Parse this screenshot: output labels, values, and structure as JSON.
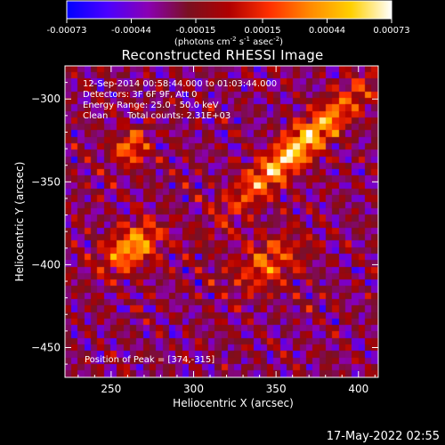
{
  "colorbar": {
    "tick_labels": [
      "-0.00073",
      "-0.00044",
      "-0.00015",
      "0.00015",
      "0.00044",
      "0.00073"
    ],
    "tick_values": [
      -0.00073,
      -0.00044,
      -0.00015,
      0.00015,
      0.00044,
      0.00073
    ],
    "range": [
      -0.00073,
      0.00073
    ],
    "units_pre": "(photons cm",
    "units_exp1": "-2",
    "units_mid": " s",
    "units_exp2": "-1",
    "units_post": " asec",
    "units_exp3": "-2",
    "units_end": ")",
    "colors": [
      "#0000ff",
      "#4b00ff",
      "#8a00b3",
      "#7a1020",
      "#b00000",
      "#ff3000",
      "#ff8a00",
      "#ffd000",
      "#ffffff"
    ]
  },
  "annotations": {
    "line1": "12-Sep-2014 00:58:44.000 to 01:03:44.000",
    "line2": "Detectors: 3F 6F 9F, Att 0",
    "line3": "Energy Range: 25.0 - 50.0 keV",
    "line4_a": "Clean",
    "line4_b": "Total counts: 2.31E+03",
    "peak": "Position of Peak = [374,-315]"
  },
  "footer": {
    "timestamp": "17-May-2022 02:55"
  },
  "chart_data": {
    "type": "heatmap",
    "title": "Reconstructed RHESSI Image",
    "xlabel": "Heliocentric X (arcsec)",
    "ylabel": "Heliocentric Y (arcsec)",
    "xlim": [
      222,
      412
    ],
    "ylim": [
      -468,
      -280
    ],
    "x_ticks": [
      250,
      300,
      350,
      400
    ],
    "x_tick_labels": [
      "250",
      "300",
      "350",
      "400"
    ],
    "y_ticks": [
      -300,
      -350,
      -400,
      -450
    ],
    "y_tick_labels": [
      "−300",
      "−350",
      "−400",
      "−450"
    ],
    "peak_position": [
      374,
      -315
    ],
    "sources": [
      {
        "x": 363,
        "y": -330,
        "sx": 38,
        "sy": 7,
        "angle_deg": 42,
        "amp": 1.0
      },
      {
        "x": 262,
        "y": -390,
        "sx": 14,
        "sy": 8,
        "angle_deg": 35,
        "amp": 0.85
      },
      {
        "x": 262,
        "y": -330,
        "sx": 8,
        "sy": 8,
        "angle_deg": 0,
        "amp": 0.6
      },
      {
        "x": 345,
        "y": -400,
        "sx": 16,
        "sy": 10,
        "angle_deg": 30,
        "amp": 0.55
      }
    ]
  }
}
